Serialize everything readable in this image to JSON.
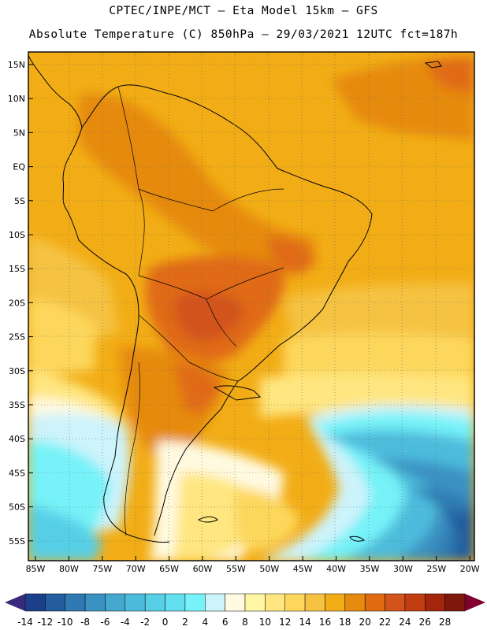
{
  "header": {
    "title_line1": "CPTEC/INPE/MCT –  Eta Model 15km – GFS",
    "title_line2": "Absolute Temperature (C) 850hPa – 29/03/2021 12UTC fct=187h"
  },
  "map": {
    "lat_labels": [
      "15N",
      "10N",
      "5N",
      "EQ",
      "5S",
      "10S",
      "15S",
      "20S",
      "25S",
      "30S",
      "35S",
      "40S",
      "45S",
      "50S",
      "55S"
    ],
    "lon_labels": [
      "85W",
      "80W",
      "75W",
      "70W",
      "65W",
      "60W",
      "55W",
      "50W",
      "45W",
      "40W",
      "35W",
      "30W",
      "25W",
      "20W"
    ]
  },
  "colorbar": {
    "labels": [
      "-14",
      "-12",
      "-10",
      "-8",
      "-6",
      "-4",
      "-2",
      "0",
      "2",
      "4",
      "6",
      "8",
      "10",
      "12",
      "14",
      "16",
      "18",
      "20",
      "22",
      "24",
      "26",
      "28"
    ],
    "colors": [
      "#1c3f8a",
      "#245d9e",
      "#2f7ab2",
      "#3a92c2",
      "#44a8cf",
      "#4dbcdc",
      "#57cfe6",
      "#63e0f0",
      "#76f2f8",
      "#cdf3fb",
      "#fffae0",
      "#fff6a6",
      "#ffe680",
      "#fdd75c",
      "#f5c242",
      "#f2ad16",
      "#e68a10",
      "#e06a12",
      "#d2531b",
      "#c23d12",
      "#a3250c",
      "#7e170c"
    ],
    "left_arrow_color": "#3a2a7e",
    "right_arrow_color": "#800030"
  }
}
